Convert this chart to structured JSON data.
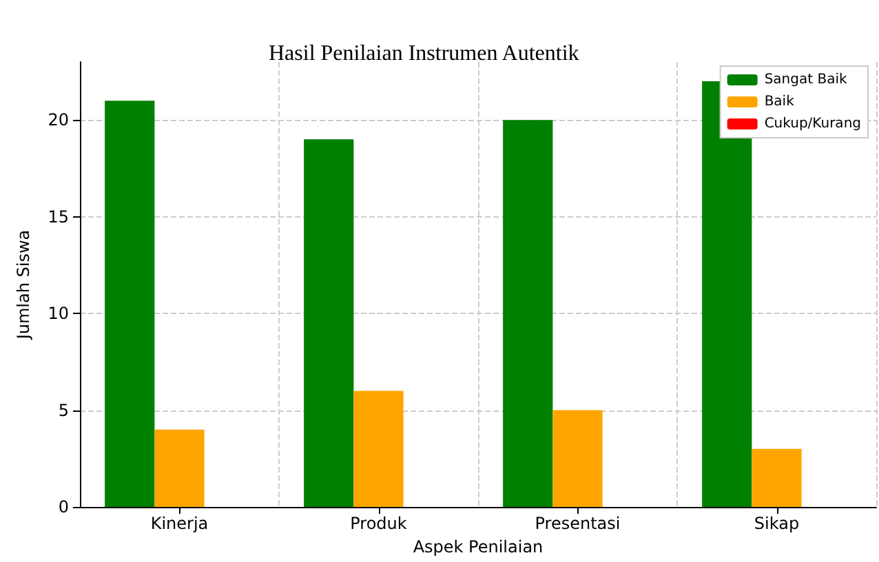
{
  "chart_data": {
    "type": "bar",
    "title": "Hasil Penilaian Instrumen Autentik",
    "xlabel": "Aspek Penilaian",
    "ylabel": "Jumlah Siswa",
    "categories": [
      "Kinerja",
      "Produk",
      "Presentasi",
      "Sikap"
    ],
    "series": [
      {
        "name": "Sangat Baik",
        "color": "#008000",
        "values": [
          21,
          19,
          20,
          22
        ]
      },
      {
        "name": "Baik",
        "color": "#ffa500",
        "values": [
          4,
          6,
          5,
          3
        ]
      },
      {
        "name": "Cukup/Kurang",
        "color": "#ff0000",
        "values": [
          0,
          0,
          0,
          0
        ]
      }
    ],
    "ylim": [
      0,
      23
    ],
    "yticks": [
      0,
      5,
      10,
      15,
      20
    ],
    "grid": true,
    "legend": "top right"
  }
}
